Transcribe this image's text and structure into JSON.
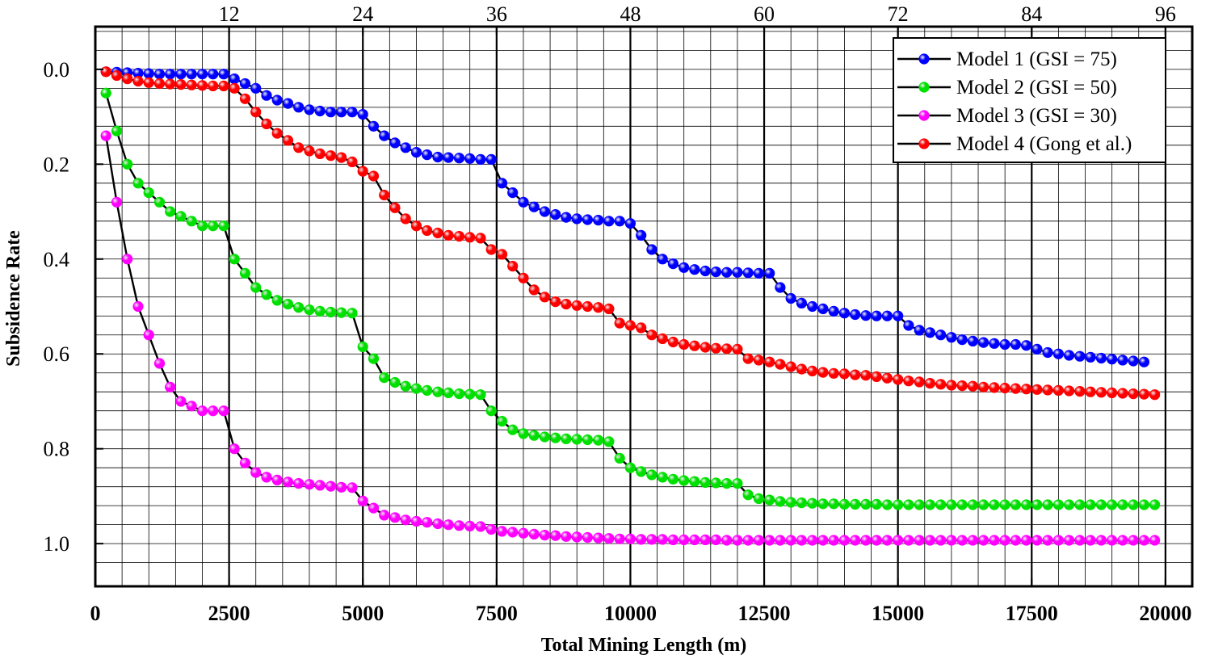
{
  "chart_data": {
    "type": "scatter",
    "title": "",
    "xlabel": "Total Mining Length (m)",
    "ylabel": "Subsidence Rate",
    "xlim": [
      0,
      20500
    ],
    "ylim": [
      1.09,
      -0.09
    ],
    "y_inverted": true,
    "x_ticks": [
      "0",
      "2500",
      "5000",
      "7500",
      "10000",
      "12500",
      "15000",
      "17500",
      "20000"
    ],
    "y_ticks": [
      "0.0",
      "0.2",
      "0.4",
      "0.6",
      "0.8",
      "1.0"
    ],
    "top_axis": {
      "ticks": [
        "12",
        "24",
        "36",
        "48",
        "60",
        "72",
        "84",
        "96"
      ],
      "positions_x_data": [
        2500,
        5000,
        7500,
        10000,
        12500,
        15000,
        17500,
        20000
      ]
    },
    "grid": true,
    "legend_position": "top-right",
    "marker_interval_m": 200,
    "first_x_m": 200,
    "series": [
      {
        "name": "Model 1 (GSI = 75)",
        "color": "#0000ff",
        "values": [
          0.005,
          0.006,
          0.007,
          0.008,
          0.009,
          0.01,
          0.01,
          0.01,
          0.01,
          0.01,
          0.01,
          0.01,
          0.02,
          0.03,
          0.04,
          0.055,
          0.065,
          0.072,
          0.08,
          0.085,
          0.088,
          0.09,
          0.09,
          0.09,
          0.095,
          0.12,
          0.14,
          0.155,
          0.165,
          0.175,
          0.18,
          0.185,
          0.186,
          0.187,
          0.188,
          0.19,
          0.19,
          0.24,
          0.26,
          0.28,
          0.29,
          0.3,
          0.306,
          0.312,
          0.315,
          0.317,
          0.318,
          0.32,
          0.32,
          0.325,
          0.35,
          0.38,
          0.4,
          0.41,
          0.418,
          0.422,
          0.425,
          0.427,
          0.428,
          0.428,
          0.429,
          0.43,
          0.43,
          0.46,
          0.483,
          0.493,
          0.5,
          0.505,
          0.51,
          0.514,
          0.517,
          0.519,
          0.52,
          0.52,
          0.52,
          0.54,
          0.55,
          0.555,
          0.56,
          0.565,
          0.57,
          0.573,
          0.576,
          0.578,
          0.58,
          0.58,
          0.582,
          0.59,
          0.597,
          0.6,
          0.603,
          0.605,
          0.607,
          0.609,
          0.611,
          0.613,
          0.615,
          0.617
        ]
      },
      {
        "name": "Model 2 (GSI = 50)",
        "color": "#00e000",
        "values": [
          0.05,
          0.13,
          0.2,
          0.24,
          0.26,
          0.28,
          0.3,
          0.31,
          0.32,
          0.33,
          0.33,
          0.33,
          0.4,
          0.43,
          0.46,
          0.475,
          0.487,
          0.495,
          0.502,
          0.507,
          0.51,
          0.512,
          0.513,
          0.514,
          0.585,
          0.61,
          0.65,
          0.66,
          0.668,
          0.673,
          0.677,
          0.68,
          0.682,
          0.684,
          0.685,
          0.686,
          0.72,
          0.742,
          0.76,
          0.768,
          0.772,
          0.775,
          0.777,
          0.779,
          0.78,
          0.781,
          0.782,
          0.785,
          0.82,
          0.84,
          0.848,
          0.855,
          0.86,
          0.864,
          0.867,
          0.869,
          0.871,
          0.872,
          0.873,
          0.873,
          0.897,
          0.905,
          0.908,
          0.911,
          0.913,
          0.914,
          0.915,
          0.916,
          0.916,
          0.917,
          0.917,
          0.917,
          0.917,
          0.918,
          0.918,
          0.918,
          0.918,
          0.918,
          0.918,
          0.918,
          0.918,
          0.918,
          0.918,
          0.918,
          0.918,
          0.918,
          0.918,
          0.918,
          0.918,
          0.918,
          0.918,
          0.918,
          0.918,
          0.918,
          0.918,
          0.918,
          0.918,
          0.918,
          0.918
        ]
      },
      {
        "name": "Model 3 (GSI = 30)",
        "color": "#ff00ff",
        "values": [
          0.14,
          0.28,
          0.4,
          0.5,
          0.56,
          0.62,
          0.67,
          0.7,
          0.71,
          0.72,
          0.72,
          0.72,
          0.8,
          0.83,
          0.85,
          0.86,
          0.866,
          0.87,
          0.873,
          0.875,
          0.877,
          0.879,
          0.881,
          0.882,
          0.91,
          0.925,
          0.94,
          0.945,
          0.95,
          0.953,
          0.955,
          0.958,
          0.96,
          0.962,
          0.963,
          0.964,
          0.97,
          0.974,
          0.976,
          0.978,
          0.98,
          0.982,
          0.983,
          0.985,
          0.986,
          0.987,
          0.988,
          0.989,
          0.99,
          0.99,
          0.991,
          0.991,
          0.991,
          0.992,
          0.992,
          0.992,
          0.992,
          0.992,
          0.993,
          0.993,
          0.993,
          0.993,
          0.993,
          0.993,
          0.993,
          0.993,
          0.993,
          0.993,
          0.993,
          0.993,
          0.993,
          0.993,
          0.993,
          0.993,
          0.993,
          0.993,
          0.993,
          0.993,
          0.993,
          0.993,
          0.993,
          0.993,
          0.993,
          0.993,
          0.993,
          0.993,
          0.993,
          0.993,
          0.993,
          0.993,
          0.993,
          0.993,
          0.993,
          0.993,
          0.993,
          0.993,
          0.993,
          0.993,
          0.993
        ]
      },
      {
        "name": "Model 4 (Gong et al.)",
        "color": "#ff0000",
        "values": [
          0.005,
          0.013,
          0.02,
          0.025,
          0.028,
          0.03,
          0.031,
          0.032,
          0.033,
          0.034,
          0.035,
          0.035,
          0.04,
          0.062,
          0.09,
          0.115,
          0.135,
          0.15,
          0.165,
          0.172,
          0.178,
          0.182,
          0.186,
          0.195,
          0.215,
          0.225,
          0.265,
          0.292,
          0.315,
          0.33,
          0.34,
          0.345,
          0.35,
          0.352,
          0.354,
          0.356,
          0.38,
          0.39,
          0.415,
          0.44,
          0.465,
          0.48,
          0.49,
          0.495,
          0.498,
          0.5,
          0.502,
          0.505,
          0.535,
          0.54,
          0.545,
          0.56,
          0.568,
          0.575,
          0.58,
          0.583,
          0.586,
          0.588,
          0.589,
          0.59,
          0.61,
          0.613,
          0.617,
          0.622,
          0.627,
          0.632,
          0.636,
          0.639,
          0.641,
          0.642,
          0.644,
          0.645,
          0.648,
          0.651,
          0.654,
          0.657,
          0.659,
          0.662,
          0.664,
          0.666,
          0.667,
          0.668,
          0.67,
          0.671,
          0.672,
          0.673,
          0.674,
          0.675,
          0.676,
          0.677,
          0.678,
          0.679,
          0.68,
          0.681,
          0.682,
          0.683,
          0.684,
          0.685,
          0.686
        ]
      }
    ]
  }
}
